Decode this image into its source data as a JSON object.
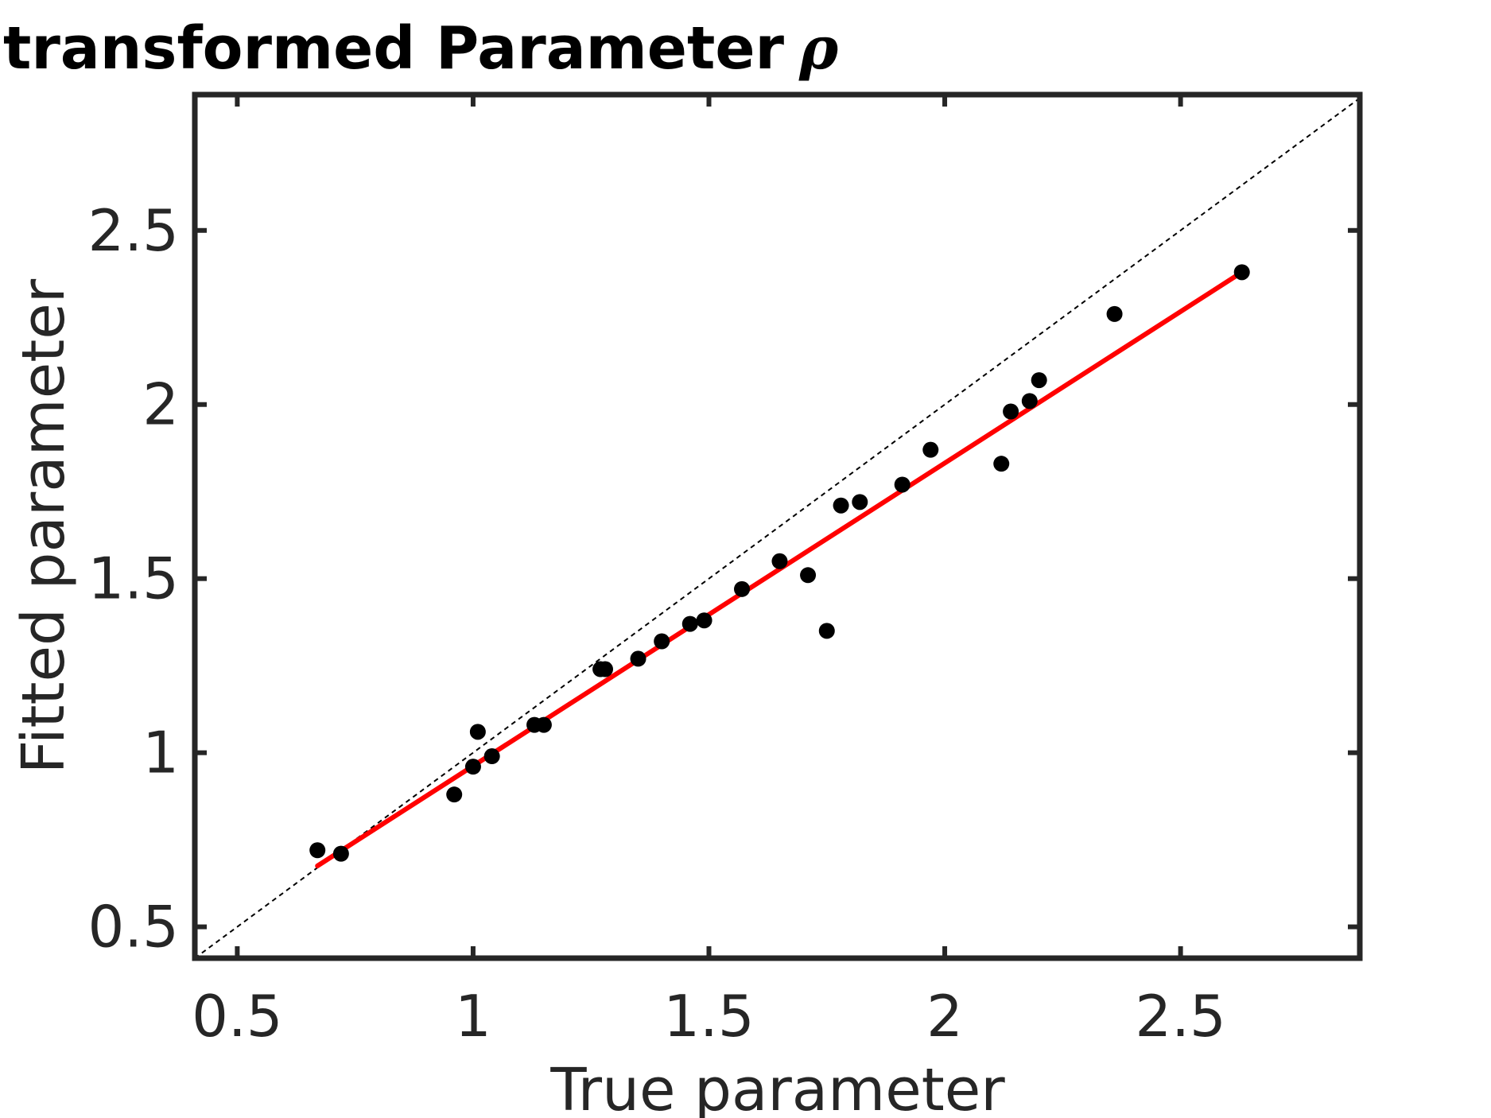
{
  "chart_data": {
    "type": "scatter",
    "title": "Untransformed Parameter",
    "title_symbol": "ρ",
    "xlabel": "True parameter",
    "ylabel": "Fitted parameter",
    "xlim": [
      0.41,
      2.88
    ],
    "ylim": [
      0.41,
      2.89
    ],
    "xticks": [
      0.5,
      1,
      1.5,
      2,
      2.5
    ],
    "xtick_labels": [
      "0.5",
      "1",
      "1.5",
      "2",
      "2.5"
    ],
    "yticks": [
      0.5,
      1,
      1.5,
      2,
      2.5
    ],
    "ytick_labels": [
      "0.5",
      "1",
      "1.5",
      "2",
      "2.5"
    ],
    "grid": false,
    "series": [
      {
        "name": "data",
        "kind": "scatter",
        "color": "#000000",
        "points": [
          [
            0.67,
            0.72
          ],
          [
            0.72,
            0.71
          ],
          [
            0.96,
            0.88
          ],
          [
            1.0,
            0.96
          ],
          [
            1.01,
            1.06
          ],
          [
            1.04,
            0.99
          ],
          [
            1.13,
            1.08
          ],
          [
            1.15,
            1.08
          ],
          [
            1.27,
            1.24
          ],
          [
            1.28,
            1.24
          ],
          [
            1.35,
            1.27
          ],
          [
            1.4,
            1.32
          ],
          [
            1.46,
            1.37
          ],
          [
            1.49,
            1.38
          ],
          [
            1.57,
            1.47
          ],
          [
            1.65,
            1.55
          ],
          [
            1.71,
            1.51
          ],
          [
            1.75,
            1.35
          ],
          [
            1.78,
            1.71
          ],
          [
            1.82,
            1.72
          ],
          [
            1.91,
            1.77
          ],
          [
            1.97,
            1.87
          ],
          [
            2.12,
            1.83
          ],
          [
            2.14,
            1.98
          ],
          [
            2.18,
            2.01
          ],
          [
            2.2,
            2.07
          ],
          [
            2.36,
            2.26
          ],
          [
            2.63,
            2.38
          ]
        ]
      },
      {
        "name": "fit",
        "kind": "line",
        "color": "#ff0000",
        "x": [
          0.67,
          2.63
        ],
        "y": [
          0.675,
          2.38
        ]
      },
      {
        "name": "identity",
        "kind": "dashed-line",
        "color": "#000000",
        "x": [
          0.41,
          2.88
        ],
        "y": [
          0.41,
          2.88
        ]
      }
    ]
  }
}
